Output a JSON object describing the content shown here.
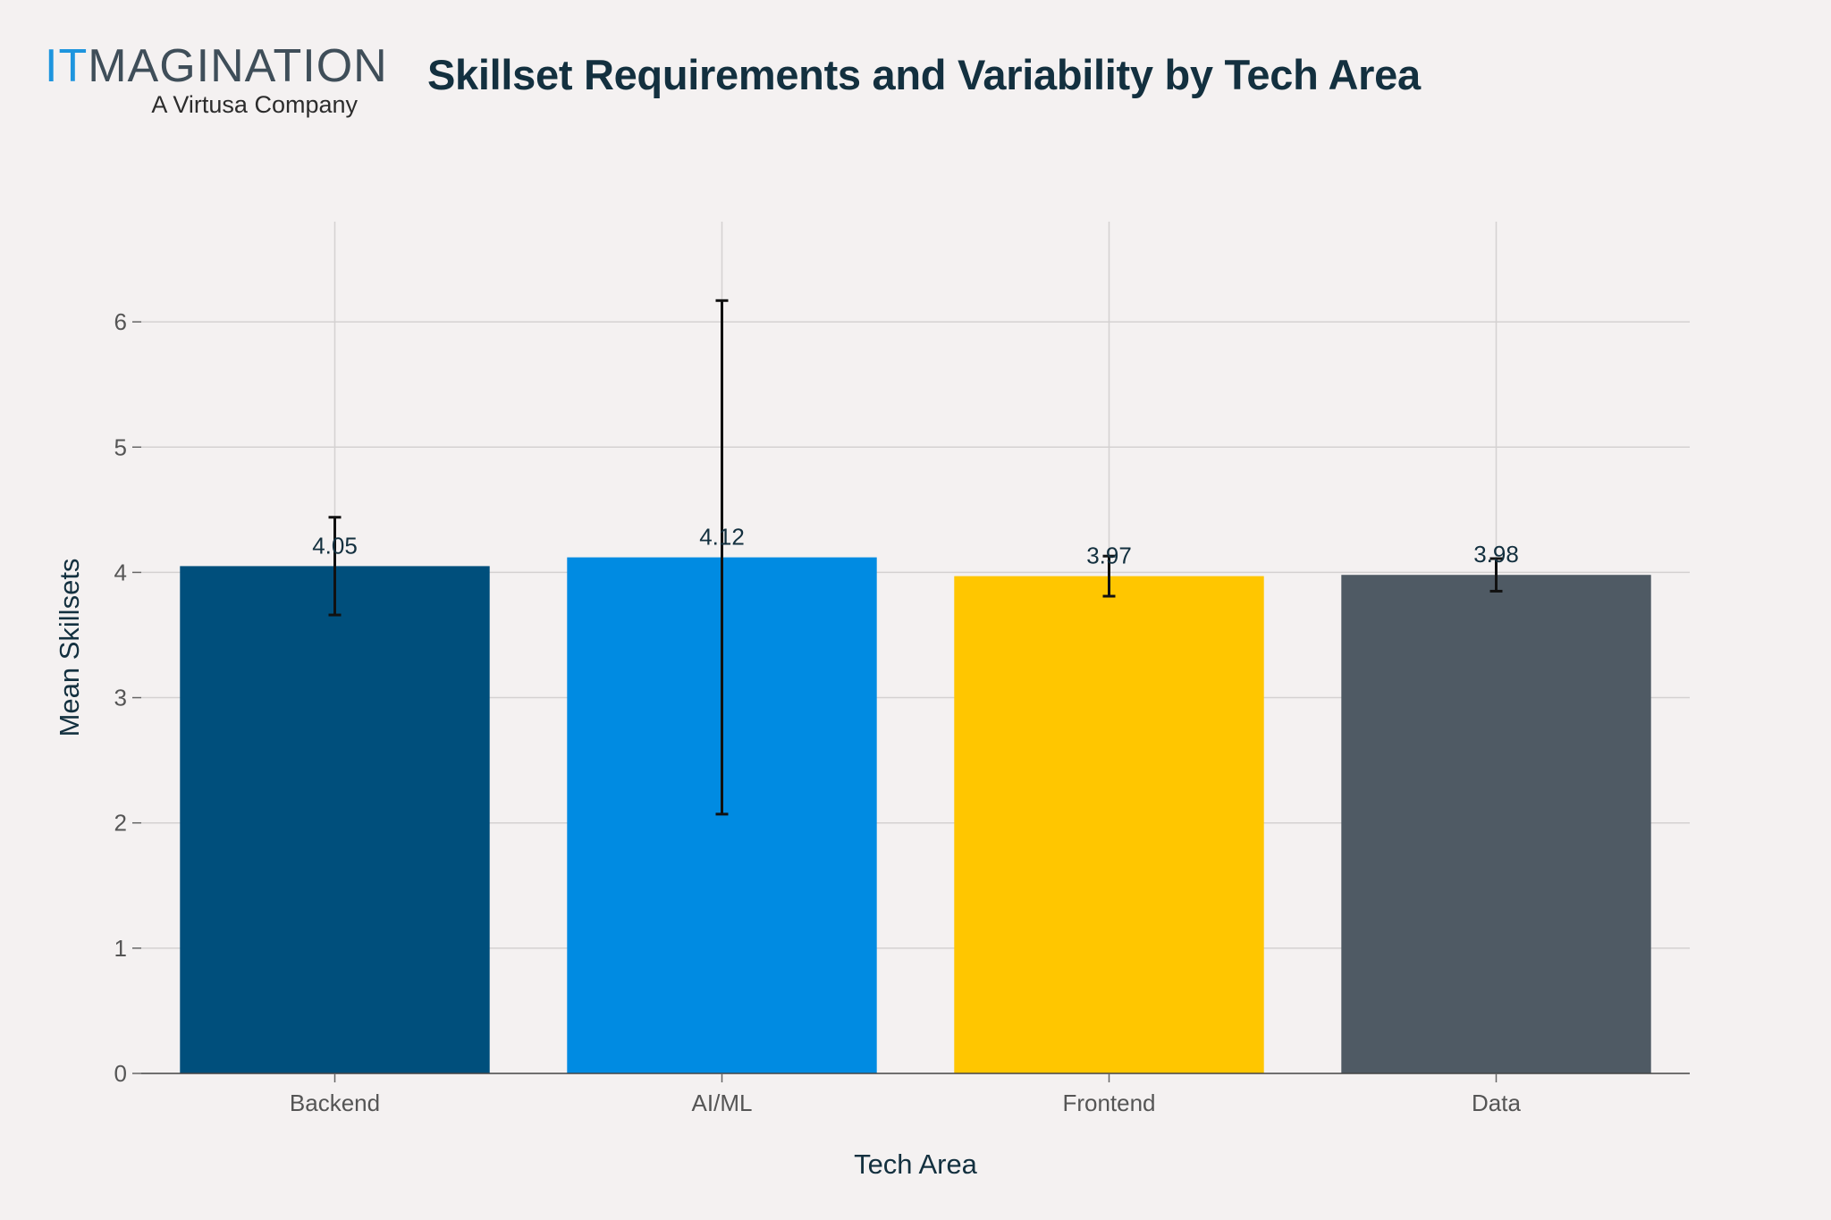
{
  "logo": {
    "word_accent": "IT",
    "word_rest": "MAGINATION",
    "tagline": "A Virtusa Company"
  },
  "chart_data": {
    "type": "bar",
    "title": "Skillset Requirements and Variability by Tech Area",
    "xlabel": "Tech Area",
    "ylabel": "Mean Skillsets",
    "categories": [
      "Backend",
      "AI/ML",
      "Frontend",
      "Data"
    ],
    "values": [
      4.05,
      4.12,
      3.97,
      3.98
    ],
    "value_labels": [
      "4.05",
      "4.12",
      "3.97",
      "3.98"
    ],
    "error_bars": [
      {
        "low": 3.66,
        "high": 4.44
      },
      {
        "low": 2.07,
        "high": 6.17
      },
      {
        "low": 3.81,
        "high": 4.13
      },
      {
        "low": 3.85,
        "high": 4.11
      }
    ],
    "colors": [
      "#004f7c",
      "#008be2",
      "#ffc600",
      "#4f5a64"
    ],
    "ylim": [
      0,
      6.8
    ],
    "yticks": [
      0,
      1,
      2,
      3,
      4,
      5,
      6
    ],
    "grid": true,
    "legend": "none"
  }
}
